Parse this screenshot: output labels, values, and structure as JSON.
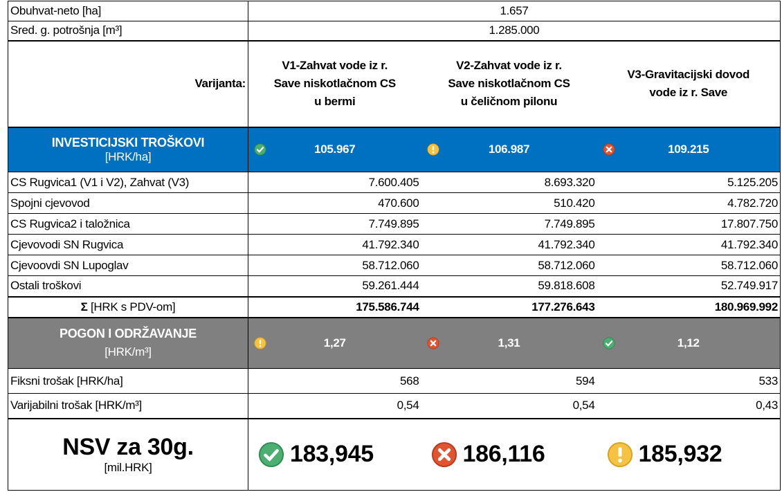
{
  "info": [
    {
      "label": "Obuhvat-neto [ha]",
      "value": "1.657"
    },
    {
      "label": "Sred. g. potrošnja [m³]",
      "value": "1.285.000"
    }
  ],
  "variant_label": "Varijanta:",
  "variants": [
    "V1-Zahvat vode iz r.\nSave niskotlačnom CS\nu bermi",
    "V2-Zahvat vode iz r.\nSave niskotlačnom CS\nu čeličnom pilonu",
    "V3-Gravitacijski dovod\nvode iz r. Save"
  ],
  "invest": {
    "title": "INVESTICIJSKI TROŠKOVI",
    "unit": "[HRK/ha]",
    "values": [
      "105.967",
      "106.987",
      "109.215"
    ]
  },
  "items": [
    {
      "label": "CS Rugvica1 (V1 i V2), Zahvat (V3)",
      "values": [
        "7.600.405",
        "8.693.320",
        "5.125.205"
      ]
    },
    {
      "label": "Spojni cjevovod",
      "values": [
        "470.600",
        "510.420",
        "4.782.720"
      ]
    },
    {
      "label": "CS Rugvica2 i taložnica",
      "values": [
        "7.749.895",
        "7.749.895",
        "17.807.750"
      ]
    },
    {
      "label": "Cjevovodi SN Rugvica",
      "values": [
        "41.792.340",
        "41.792.340",
        "41.792.340"
      ]
    },
    {
      "label": "Cjevoovdi SN Lupoglav",
      "values": [
        "58.712.060",
        "58.712.060",
        "58.712.060"
      ]
    },
    {
      "label": "Ostali troškovi",
      "values": [
        "59.261.444",
        "59.818.608",
        "52.749.917"
      ]
    }
  ],
  "total": {
    "symbol": "Σ",
    "label": "[HRK s PDV-om]",
    "values": [
      "175.586.744",
      "177.276.643",
      "180.969.992"
    ]
  },
  "pogon": {
    "title": "POGON I ODRŽAVANJE",
    "unit": "[HRK/m³]",
    "values": [
      "1,27",
      "1,31",
      "1,12"
    ]
  },
  "opex": [
    {
      "label": "Fiksni trošak [HRK/ha]",
      "values": [
        "568",
        "594",
        "533"
      ]
    },
    {
      "label": "Varijabilni trošak [HRK/m³]",
      "values": [
        "0,54",
        "0,54",
        "0,43"
      ]
    }
  ],
  "nsv": {
    "title": "NSV za 30g.",
    "unit": "[mil.HRK]",
    "values": [
      "183,945",
      "186,116",
      "185,932"
    ]
  }
}
